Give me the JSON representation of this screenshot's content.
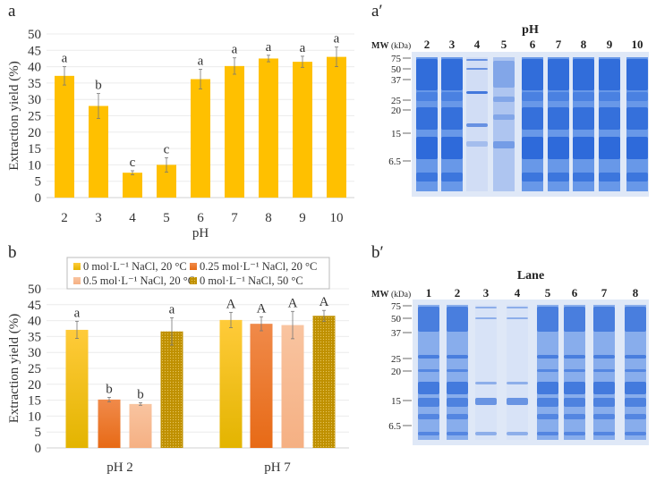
{
  "panels": {
    "a": "a",
    "a_prime": "a′",
    "b": "b",
    "b_prime": "b′"
  },
  "chart_data": [
    {
      "type": "bar",
      "title": "",
      "xlabel": "pH",
      "ylabel": "Extraction yield (%)",
      "ylim": [
        0,
        50
      ],
      "yticks": [
        0,
        5,
        10,
        15,
        20,
        25,
        30,
        35,
        40,
        45,
        50
      ],
      "grid": true,
      "color": "#FFC000",
      "categories": [
        "2",
        "3",
        "4",
        "5",
        "6",
        "7",
        "8",
        "9",
        "10"
      ],
      "values": [
        37.2,
        28,
        7.6,
        10,
        36.2,
        40.2,
        42.5,
        41.5,
        43
      ],
      "errors": [
        2.8,
        3.8,
        0.6,
        2.2,
        3,
        2.5,
        1,
        1.7,
        3
      ],
      "letters": [
        "a",
        "b",
        "c",
        "c",
        "a",
        "a",
        "a",
        "a",
        "a"
      ]
    },
    {
      "type": "bar",
      "title": "",
      "xlabel": "",
      "ylabel": "Extraction yield (%)",
      "ylim": [
        0,
        50
      ],
      "yticks": [
        0,
        5,
        10,
        15,
        20,
        25,
        30,
        35,
        40,
        45,
        50
      ],
      "grid": true,
      "legend": "top",
      "categories": [
        "pH 2",
        "pH 7"
      ],
      "series": [
        {
          "name": "0 mol·L⁻¹  NaCl, 20 °C",
          "color": "#FFC20E",
          "values": [
            37.1,
            40.2
          ],
          "errors": [
            2.7,
            2.4
          ],
          "letters": [
            "a",
            "A"
          ]
        },
        {
          "name": "0.25 mol·L⁻¹  NaCl, 20 °C",
          "color": "#ED7D31",
          "values": [
            15.2,
            39
          ],
          "errors": [
            0.7,
            2.2
          ],
          "letters": [
            "b",
            "A"
          ]
        },
        {
          "name": "0.5 mol·L⁻¹  NaCl, 20 °C",
          "color": "#F8B88B",
          "values": [
            13.8,
            38.6
          ],
          "errors": [
            0.4,
            4.3
          ],
          "letters": [
            "b",
            "A"
          ]
        },
        {
          "name": "0 mol·L⁻¹  NaCl, 50 °C",
          "color": "#BF9000",
          "values": [
            36.6,
            41.5
          ],
          "errors": [
            4.3,
            1.7
          ],
          "letters": [
            "a",
            "A"
          ]
        }
      ]
    }
  ],
  "gels": {
    "a_prime": {
      "title": "pH",
      "mw_label": "MW",
      "mw_unit": "(kDa)",
      "lanes": [
        "2",
        "3",
        "4",
        "5",
        "6",
        "7",
        "8",
        "9",
        "10"
      ],
      "markers": [
        "75",
        "50",
        "37",
        "25",
        "20",
        "15",
        "6.5"
      ]
    },
    "b_prime": {
      "title": "Lane",
      "mw_label": "MW",
      "mw_unit": "(kDa)",
      "lanes": [
        "1",
        "2",
        "3",
        "4",
        "5",
        "6",
        "7",
        "8"
      ],
      "markers": [
        "75",
        "50",
        "37",
        "25",
        "20",
        "15",
        "6.5"
      ]
    }
  }
}
